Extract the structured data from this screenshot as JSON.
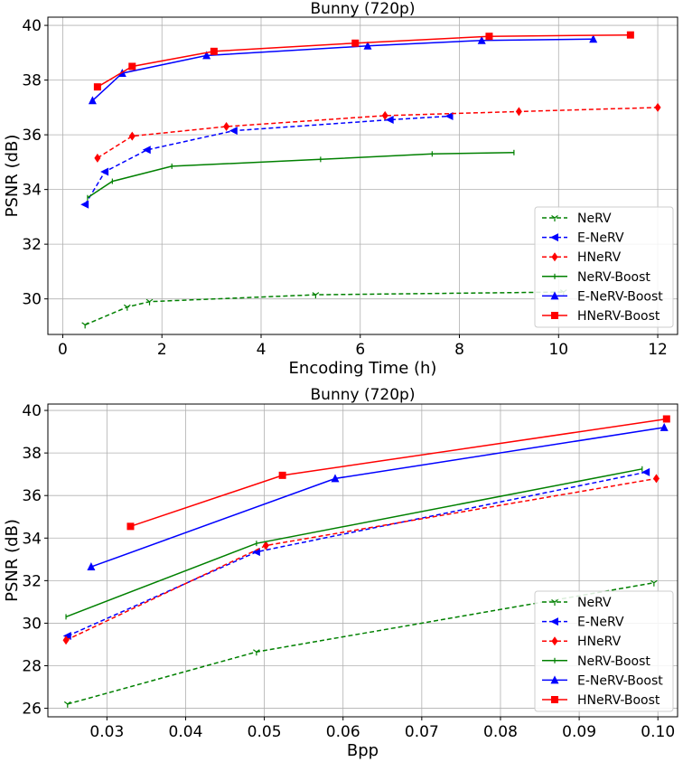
{
  "chart_data": [
    {
      "type": "line",
      "title": "Bunny (720p)",
      "xlabel": "Encoding Time (h)",
      "ylabel": "PSNR (dB)",
      "xlim": [
        -0.3,
        12.4
      ],
      "ylim": [
        28.7,
        40.3
      ],
      "xticks": [
        0,
        2,
        4,
        6,
        8,
        10,
        12
      ],
      "yticks": [
        30,
        32,
        34,
        36,
        38,
        40
      ],
      "xtick_labels": [
        "0",
        "2",
        "4",
        "6",
        "8",
        "10",
        "12"
      ],
      "ytick_labels": [
        "30",
        "32",
        "34",
        "36",
        "38",
        "40"
      ],
      "grid": true,
      "legend_position": "lower-right",
      "series": [
        {
          "name": "NeRV",
          "color": "#008000",
          "dash": "dashed",
          "marker": "tri",
          "x": [
            0.45,
            1.3,
            1.75,
            5.1,
            10.1
          ],
          "y": [
            29.05,
            29.7,
            29.9,
            30.15,
            30.25
          ]
        },
        {
          "name": "E-NeRV",
          "color": "#0000ff",
          "dash": "dashed",
          "marker": "triangle-left",
          "x": [
            0.45,
            0.85,
            1.7,
            3.45,
            6.6,
            7.8
          ],
          "y": [
            33.45,
            34.65,
            35.45,
            36.15,
            36.55,
            36.68
          ]
        },
        {
          "name": "HNeRV",
          "color": "#ff0000",
          "dash": "dashed",
          "marker": "diamond",
          "x": [
            0.7,
            1.4,
            3.3,
            6.5,
            9.2,
            12.0
          ],
          "y": [
            35.15,
            35.95,
            36.3,
            36.7,
            36.85,
            37.0
          ]
        },
        {
          "name": "NeRV-Boost",
          "color": "#008000",
          "dash": "solid",
          "marker": "tick",
          "x": [
            0.5,
            1.0,
            2.2,
            5.2,
            7.45,
            9.1
          ],
          "y": [
            33.7,
            34.3,
            34.85,
            35.1,
            35.3,
            35.35
          ]
        },
        {
          "name": "E-NeRV-Boost",
          "color": "#0000ff",
          "dash": "solid",
          "marker": "triangle",
          "x": [
            0.6,
            1.2,
            2.9,
            6.15,
            8.45,
            10.7
          ],
          "y": [
            37.25,
            38.25,
            38.9,
            39.25,
            39.45,
            39.5
          ]
        },
        {
          "name": "HNeRV-Boost",
          "color": "#ff0000",
          "dash": "solid",
          "marker": "square",
          "x": [
            0.7,
            1.4,
            3.05,
            5.9,
            8.6,
            11.45
          ],
          "y": [
            37.75,
            38.5,
            39.05,
            39.35,
            39.6,
            39.65
          ]
        }
      ]
    },
    {
      "type": "line",
      "title": "Bunny (720p)",
      "xlabel": "Bpp",
      "ylabel": "PSNR (dB)",
      "xlim": [
        0.0225,
        0.1025
      ],
      "ylim": [
        25.6,
        40.3
      ],
      "xticks": [
        0.03,
        0.04,
        0.05,
        0.06,
        0.07,
        0.08,
        0.09,
        0.1
      ],
      "yticks": [
        26,
        28,
        30,
        32,
        34,
        36,
        38,
        40
      ],
      "xtick_labels": [
        "0.03",
        "0.04",
        "0.05",
        "0.06",
        "0.07",
        "0.08",
        "0.09",
        "0.10"
      ],
      "ytick_labels": [
        "26",
        "28",
        "30",
        "32",
        "34",
        "36",
        "38",
        "40"
      ],
      "grid": true,
      "legend_position": "lower-right",
      "series": [
        {
          "name": "NeRV",
          "color": "#008000",
          "dash": "dashed",
          "marker": "tri",
          "x": [
            0.025,
            0.049,
            0.0995
          ],
          "y": [
            26.2,
            28.65,
            31.9
          ]
        },
        {
          "name": "E-NeRV",
          "color": "#0000ff",
          "dash": "dashed",
          "marker": "triangle-left",
          "x": [
            0.025,
            0.049,
            0.0985
          ],
          "y": [
            29.4,
            33.35,
            37.1
          ]
        },
        {
          "name": "HNeRV",
          "color": "#ff0000",
          "dash": "dashed",
          "marker": "diamond",
          "x": [
            0.0248,
            0.0502,
            0.0998
          ],
          "y": [
            29.2,
            33.65,
            36.8
          ]
        },
        {
          "name": "NeRV-Boost",
          "color": "#008000",
          "dash": "solid",
          "marker": "tick",
          "x": [
            0.0248,
            0.049,
            0.098
          ],
          "y": [
            30.3,
            33.75,
            37.25
          ]
        },
        {
          "name": "E-NeRV-Boost",
          "color": "#0000ff",
          "dash": "solid",
          "marker": "triangle",
          "x": [
            0.028,
            0.059,
            0.1008
          ],
          "y": [
            32.65,
            36.8,
            39.2
          ]
        },
        {
          "name": "HNeRV-Boost",
          "color": "#ff0000",
          "dash": "solid",
          "marker": "square",
          "x": [
            0.033,
            0.0523,
            0.1011
          ],
          "y": [
            34.55,
            36.95,
            39.6
          ]
        }
      ]
    }
  ]
}
